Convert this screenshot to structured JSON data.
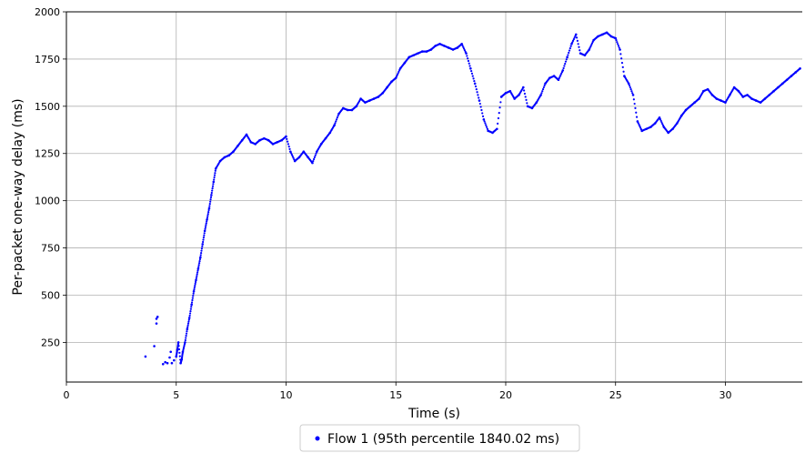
{
  "chart_data": {
    "type": "scatter",
    "xlabel": "Time (s)",
    "ylabel": "Per-packet one-way delay (ms)",
    "xlim": [
      0,
      33.5
    ],
    "ylim": [
      40,
      2000
    ],
    "x_ticks": [
      0,
      5,
      10,
      15,
      20,
      25,
      30
    ],
    "y_ticks": [
      250,
      500,
      750,
      1000,
      1250,
      1500,
      1750,
      2000
    ],
    "grid": true,
    "legend_position": "bottom-center",
    "series": [
      {
        "name": "Flow 1 (95th percentile 1840.02 ms)",
        "color": "#0000ff",
        "points": [
          [
            3.6,
            175
          ],
          [
            4.0,
            230
          ],
          [
            4.1,
            350
          ],
          [
            4.1,
            375
          ],
          [
            4.15,
            385
          ],
          [
            4.4,
            135
          ],
          [
            4.5,
            145
          ],
          [
            4.6,
            140
          ],
          [
            4.7,
            170
          ],
          [
            4.75,
            200
          ],
          [
            4.8,
            140
          ],
          [
            4.9,
            155
          ],
          [
            5.0,
            175
          ],
          [
            5.05,
            210
          ],
          [
            5.1,
            250
          ],
          [
            5.2,
            140
          ],
          [
            5.25,
            160
          ],
          [
            5.3,
            200
          ],
          [
            5.4,
            250
          ],
          [
            5.5,
            320
          ],
          [
            5.6,
            380
          ],
          [
            5.7,
            450
          ],
          [
            5.8,
            520
          ],
          [
            5.9,
            580
          ],
          [
            6.0,
            640
          ],
          [
            6.1,
            700
          ],
          [
            6.2,
            770
          ],
          [
            6.3,
            840
          ],
          [
            6.4,
            900
          ],
          [
            6.5,
            960
          ],
          [
            6.6,
            1030
          ],
          [
            6.7,
            1100
          ],
          [
            6.8,
            1170
          ],
          [
            7.0,
            1210
          ],
          [
            7.2,
            1230
          ],
          [
            7.4,
            1240
          ],
          [
            7.6,
            1260
          ],
          [
            7.8,
            1290
          ],
          [
            8.0,
            1320
          ],
          [
            8.2,
            1350
          ],
          [
            8.4,
            1310
          ],
          [
            8.6,
            1300
          ],
          [
            8.8,
            1320
          ],
          [
            9.0,
            1330
          ],
          [
            9.2,
            1320
          ],
          [
            9.4,
            1300
          ],
          [
            9.6,
            1310
          ],
          [
            9.8,
            1320
          ],
          [
            10.0,
            1340
          ],
          [
            10.2,
            1260
          ],
          [
            10.4,
            1210
          ],
          [
            10.6,
            1230
          ],
          [
            10.8,
            1260
          ],
          [
            11.0,
            1230
          ],
          [
            11.2,
            1200
          ],
          [
            11.4,
            1260
          ],
          [
            11.6,
            1300
          ],
          [
            11.8,
            1330
          ],
          [
            12.0,
            1360
          ],
          [
            12.2,
            1400
          ],
          [
            12.4,
            1460
          ],
          [
            12.6,
            1490
          ],
          [
            12.8,
            1480
          ],
          [
            13.0,
            1480
          ],
          [
            13.2,
            1500
          ],
          [
            13.4,
            1540
          ],
          [
            13.6,
            1520
          ],
          [
            13.8,
            1530
          ],
          [
            14.0,
            1540
          ],
          [
            14.2,
            1550
          ],
          [
            14.4,
            1570
          ],
          [
            14.6,
            1600
          ],
          [
            14.8,
            1630
          ],
          [
            15.0,
            1650
          ],
          [
            15.2,
            1700
          ],
          [
            15.4,
            1730
          ],
          [
            15.6,
            1760
          ],
          [
            15.8,
            1770
          ],
          [
            16.0,
            1780
          ],
          [
            16.2,
            1790
          ],
          [
            16.4,
            1790
          ],
          [
            16.6,
            1800
          ],
          [
            16.8,
            1820
          ],
          [
            17.0,
            1830
          ],
          [
            17.2,
            1820
          ],
          [
            17.4,
            1810
          ],
          [
            17.6,
            1800
          ],
          [
            17.8,
            1810
          ],
          [
            18.0,
            1830
          ],
          [
            18.2,
            1780
          ],
          [
            18.4,
            1700
          ],
          [
            18.6,
            1620
          ],
          [
            18.8,
            1530
          ],
          [
            19.0,
            1430
          ],
          [
            19.2,
            1370
          ],
          [
            19.4,
            1360
          ],
          [
            19.6,
            1380
          ],
          [
            19.8,
            1550
          ],
          [
            20.0,
            1570
          ],
          [
            20.2,
            1580
          ],
          [
            20.4,
            1540
          ],
          [
            20.6,
            1560
          ],
          [
            20.8,
            1600
          ],
          [
            21.0,
            1500
          ],
          [
            21.2,
            1490
          ],
          [
            21.4,
            1520
          ],
          [
            21.6,
            1560
          ],
          [
            21.8,
            1620
          ],
          [
            22.0,
            1650
          ],
          [
            22.2,
            1660
          ],
          [
            22.4,
            1640
          ],
          [
            22.6,
            1690
          ],
          [
            22.8,
            1760
          ],
          [
            23.0,
            1830
          ],
          [
            23.2,
            1880
          ],
          [
            23.4,
            1780
          ],
          [
            23.6,
            1770
          ],
          [
            23.8,
            1800
          ],
          [
            24.0,
            1850
          ],
          [
            24.2,
            1870
          ],
          [
            24.4,
            1880
          ],
          [
            24.6,
            1890
          ],
          [
            24.8,
            1870
          ],
          [
            25.0,
            1860
          ],
          [
            25.2,
            1800
          ],
          [
            25.4,
            1660
          ],
          [
            25.6,
            1620
          ],
          [
            25.8,
            1560
          ],
          [
            26.0,
            1420
          ],
          [
            26.2,
            1370
          ],
          [
            26.4,
            1380
          ],
          [
            26.6,
            1390
          ],
          [
            26.8,
            1410
          ],
          [
            27.0,
            1440
          ],
          [
            27.2,
            1390
          ],
          [
            27.4,
            1360
          ],
          [
            27.6,
            1380
          ],
          [
            27.8,
            1410
          ],
          [
            28.0,
            1450
          ],
          [
            28.2,
            1480
          ],
          [
            28.4,
            1500
          ],
          [
            28.6,
            1520
          ],
          [
            28.8,
            1540
          ],
          [
            29.0,
            1580
          ],
          [
            29.2,
            1590
          ],
          [
            29.4,
            1560
          ],
          [
            29.6,
            1540
          ],
          [
            29.8,
            1530
          ],
          [
            30.0,
            1520
          ],
          [
            30.2,
            1560
          ],
          [
            30.4,
            1600
          ],
          [
            30.6,
            1580
          ],
          [
            30.8,
            1550
          ],
          [
            31.0,
            1560
          ],
          [
            31.2,
            1540
          ],
          [
            31.4,
            1530
          ],
          [
            31.6,
            1520
          ],
          [
            31.8,
            1540
          ],
          [
            32.0,
            1560
          ],
          [
            32.2,
            1580
          ],
          [
            32.4,
            1600
          ],
          [
            32.6,
            1620
          ],
          [
            32.8,
            1640
          ],
          [
            33.0,
            1660
          ],
          [
            33.2,
            1680
          ],
          [
            33.4,
            1700
          ]
        ]
      }
    ]
  }
}
